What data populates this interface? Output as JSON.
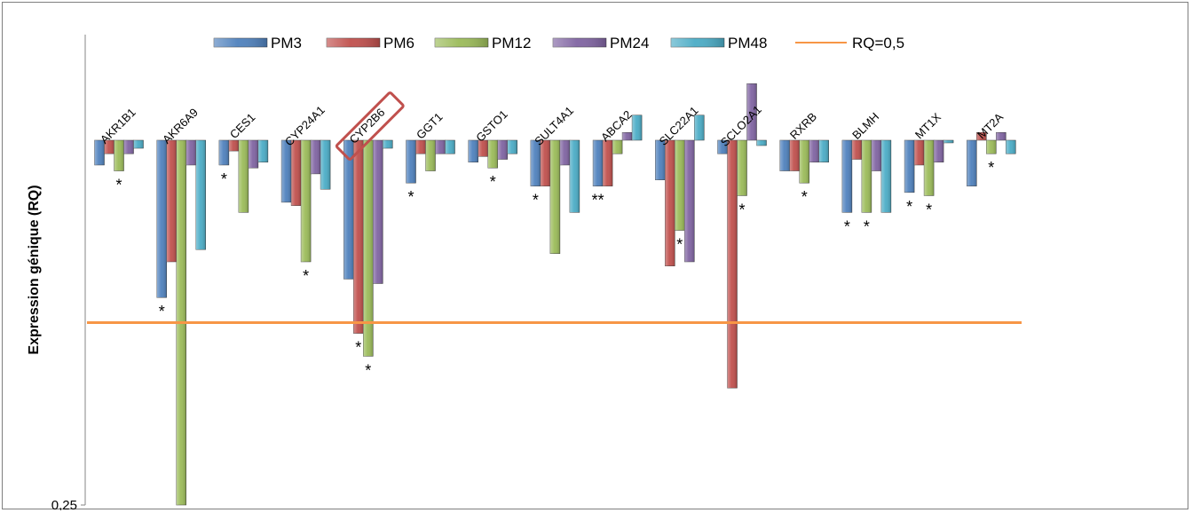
{
  "chart_data": {
    "type": "bar",
    "ylabel": "Expression génique (RQ)",
    "yscale": "log2",
    "baseline": 1,
    "ylim": [
      0.25,
      1.4
    ],
    "ytick_labels": [
      "0,25"
    ],
    "grid": false,
    "legend_position": "top",
    "categories": [
      "AKR1B1",
      "AKR6A9",
      "CES1",
      "CYP24A1",
      "CYP2B6",
      "GGT1",
      "GSTO1",
      "SULT4A1",
      "ABCA2",
      "SLC22A1",
      "SCLO2A1",
      "RXRB",
      "BLMH",
      "MT1X",
      "MT2A"
    ],
    "highlighted_category": "CYP2B6",
    "highlight_color": "#c0504d",
    "series": [
      {
        "name": "PM3",
        "color": "#4f81bd",
        "values": [
          0.91,
          0.55,
          0.91,
          0.79,
          0.59,
          0.85,
          0.92,
          0.84,
          0.84,
          0.86,
          0.95,
          0.89,
          0.76,
          0.82,
          0.84
        ]
      },
      {
        "name": "PM6",
        "color": "#c0504d",
        "values": [
          0.95,
          0.63,
          0.96,
          0.78,
          0.48,
          0.95,
          0.94,
          0.84,
          0.84,
          0.62,
          0.39,
          0.89,
          0.93,
          0.91,
          1.03
        ]
      },
      {
        "name": "PM12",
        "color": "#9bbb59",
        "values": [
          0.89,
          0.25,
          0.76,
          0.63,
          0.44,
          0.89,
          0.9,
          0.65,
          0.95,
          0.71,
          0.81,
          0.85,
          0.76,
          0.81,
          0.95
        ]
      },
      {
        "name": "PM24",
        "color": "#8064a2",
        "values": [
          0.95,
          0.91,
          0.9,
          0.88,
          0.58,
          0.95,
          0.93,
          0.91,
          1.03,
          0.63,
          1.24,
          0.92,
          0.89,
          0.92,
          1.03
        ]
      },
      {
        "name": "PM48",
        "color": "#4bacc6",
        "values": [
          0.97,
          0.66,
          0.92,
          0.83,
          0.97,
          0.95,
          0.95,
          0.76,
          1.1,
          1.1,
          0.98,
          0.92,
          0.76,
          0.99,
          0.95
        ]
      }
    ],
    "reference_line": {
      "name": "RQ=0,5",
      "value": 0.5,
      "color": "#f79646"
    },
    "significance": [
      {
        "category": "AKR1B1",
        "marks": "*"
      },
      {
        "category": "AKR6A9",
        "marks": "*"
      },
      {
        "category": "CES1",
        "marks": "*"
      },
      {
        "category": "CYP24A1",
        "marks": "*"
      },
      {
        "category": "CYP2B6",
        "marks": "*"
      },
      {
        "category": "CYP2B6",
        "marks": "*"
      },
      {
        "category": "GGT1",
        "marks": "*"
      },
      {
        "category": "GSTO1",
        "marks": "*"
      },
      {
        "category": "SULT4A1",
        "marks": "*"
      },
      {
        "category": "ABCA2",
        "marks": "**"
      },
      {
        "category": "SLC22A1",
        "marks": "*"
      },
      {
        "category": "SCLO2A1",
        "marks": "*"
      },
      {
        "category": "RXRB",
        "marks": "*"
      },
      {
        "category": "BLMH",
        "marks": "*"
      },
      {
        "category": "BLMH",
        "marks": "*"
      },
      {
        "category": "MT1X",
        "marks": "*"
      },
      {
        "category": "MT1X",
        "marks": "*"
      },
      {
        "category": "MT2A",
        "marks": "*"
      }
    ]
  }
}
